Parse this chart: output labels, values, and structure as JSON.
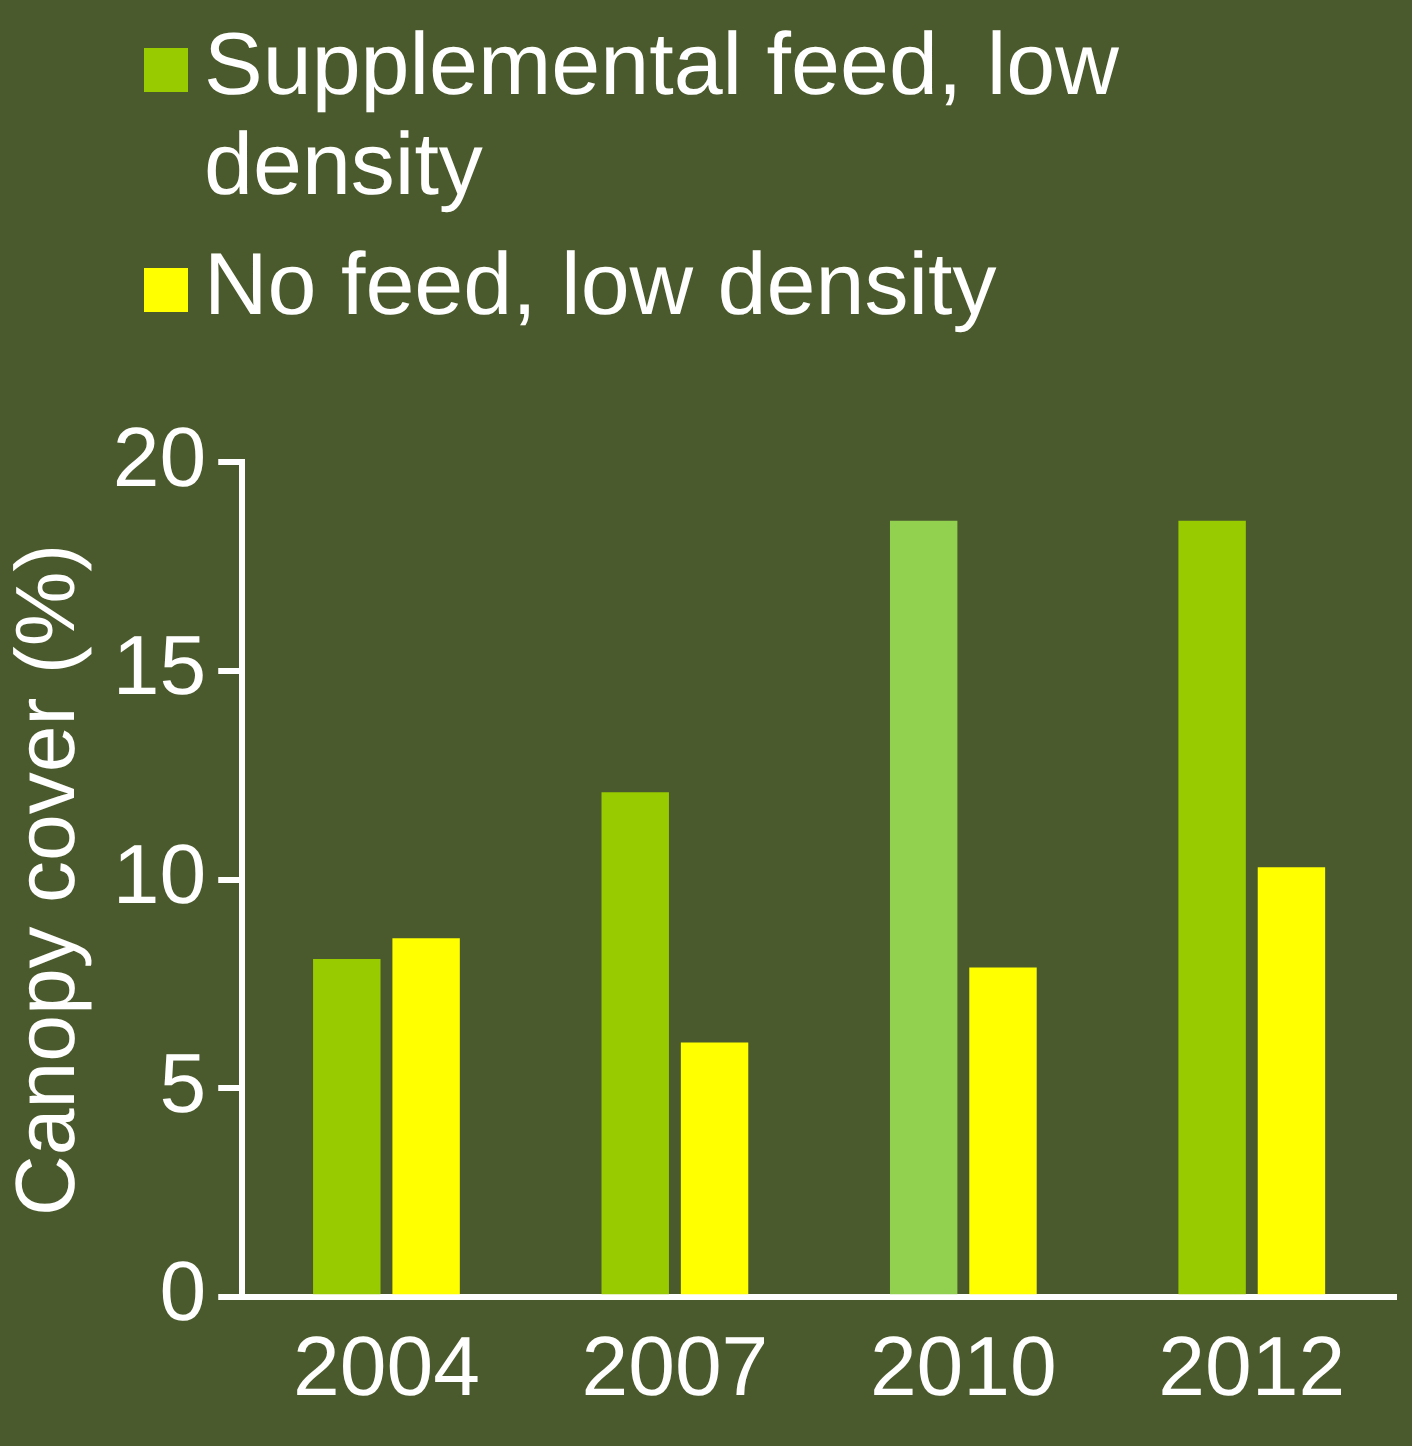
{
  "chart_data": {
    "type": "bar",
    "ylabel": "Canopy cover (%)",
    "categories": [
      "2004",
      "2007",
      "2010",
      "2012"
    ],
    "series": [
      {
        "name": "Supplemental feed, low density",
        "color": "#99cc00",
        "colors": [
          "#99cc00",
          "#99cc00",
          "#92d050",
          "#99cc00"
        ],
        "values": [
          8.1,
          12.1,
          18.6,
          18.6
        ]
      },
      {
        "name": "No feed, low density",
        "color": "#ffff00",
        "values": [
          8.6,
          6.1,
          7.9,
          10.3
        ]
      }
    ],
    "ylim": [
      0,
      20
    ],
    "yticks": [
      0,
      5,
      10,
      15,
      20
    ],
    "grid": false,
    "legend": "top"
  }
}
